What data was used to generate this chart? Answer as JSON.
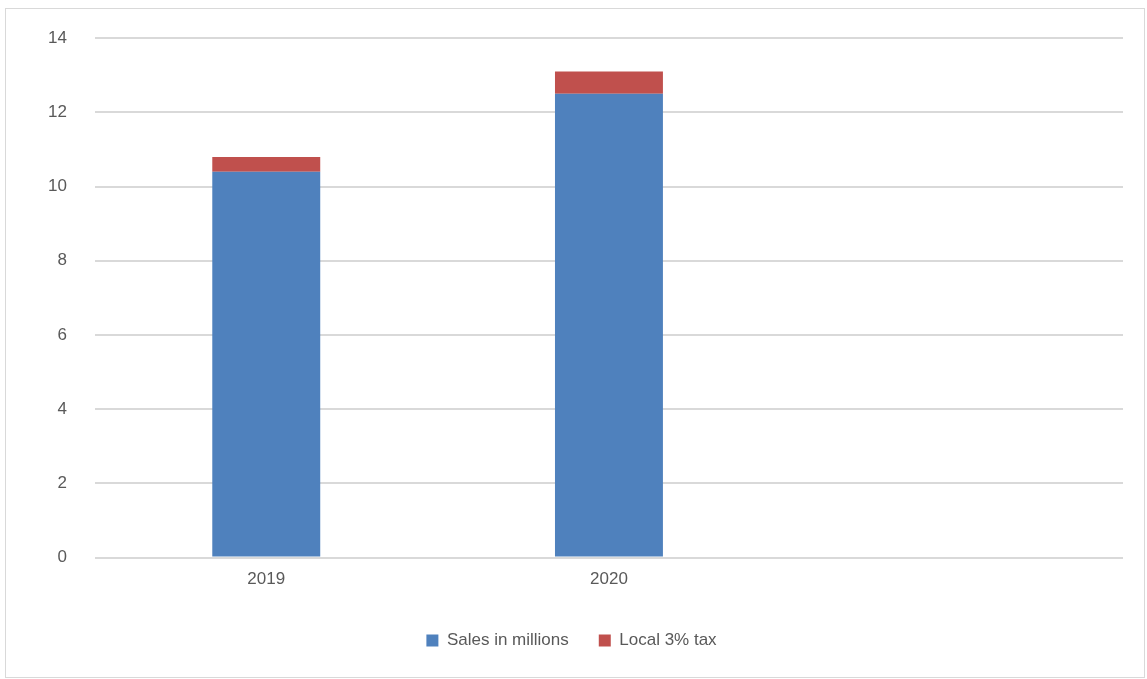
{
  "chart_data": {
    "type": "bar",
    "stacked": true,
    "categories": [
      "2019",
      "2020",
      null
    ],
    "series": [
      {
        "name": "Sales in millions",
        "color": "#4f81bd",
        "values": [
          10.4,
          12.5,
          null
        ]
      },
      {
        "name": "Local 3% tax",
        "color": "#c0504d",
        "values": [
          0.4,
          0.6,
          null
        ]
      }
    ],
    "ylim": [
      0,
      14
    ],
    "yticks": [
      0,
      2,
      4,
      6,
      8,
      10,
      12,
      14
    ],
    "grid": "y",
    "legend": "bottom"
  }
}
